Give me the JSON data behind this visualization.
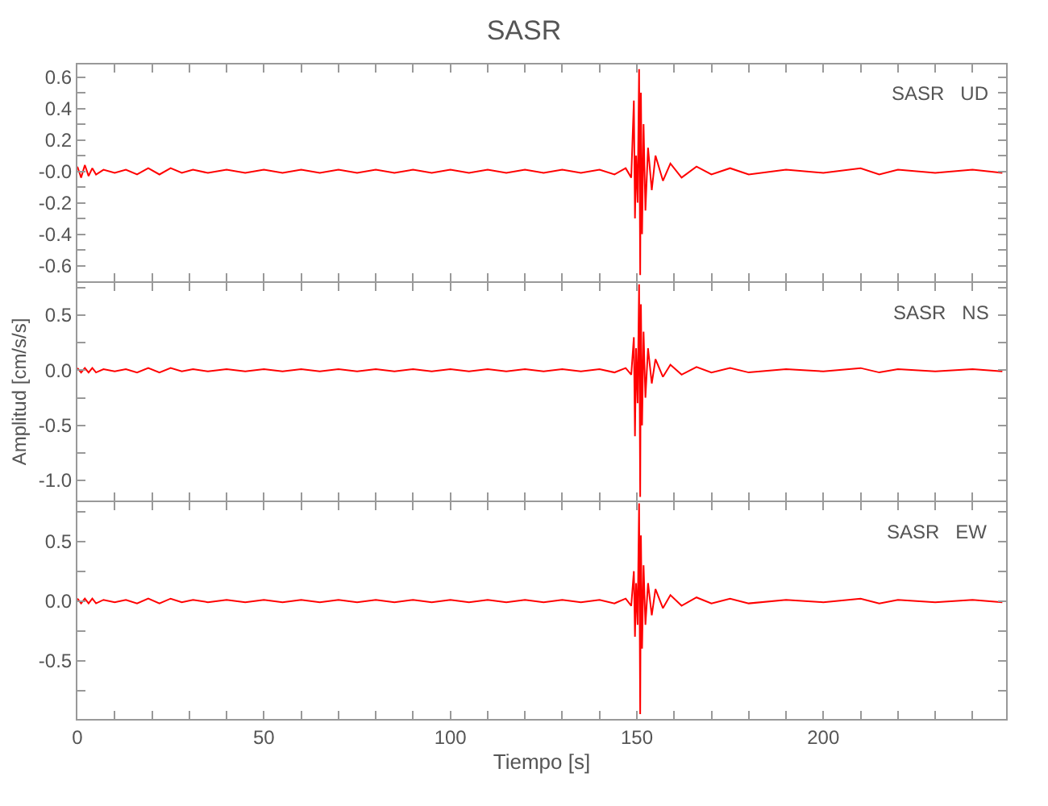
{
  "chart_data": [
    {
      "type": "line",
      "title": "SASR",
      "annotations": [
        "SASR   UD"
      ],
      "tick_labels": "y",
      "xlim": [
        0,
        249
      ],
      "ylim": [
        -0.7,
        0.68
      ],
      "line_style": "solid",
      "marker": "none",
      "xticks": [
        0,
        {
          "value": 10,
          "label": null
        },
        {
          "value": 20,
          "label": null
        },
        {
          "value": 30,
          "label": null
        },
        {
          "value": 40,
          "label": null
        },
        50,
        {
          "value": 60,
          "label": null
        },
        {
          "value": 70,
          "label": null
        },
        {
          "value": 80,
          "label": null
        },
        {
          "value": 90,
          "label": null
        },
        100,
        {
          "value": 110,
          "label": null
        },
        {
          "value": 120,
          "label": null
        },
        {
          "value": 130,
          "label": null
        },
        {
          "value": 140,
          "label": null
        },
        150,
        {
          "value": 160,
          "label": null
        },
        {
          "value": 170,
          "label": null
        },
        {
          "value": 180,
          "label": null
        },
        {
          "value": 190,
          "label": null
        },
        200,
        {
          "value": 210,
          "label": null
        },
        {
          "value": 220,
          "label": null
        },
        {
          "value": 230,
          "label": null
        },
        {
          "value": 240,
          "label": null
        }
      ],
      "yticks": [
        {
          "value": -0.7,
          "label": null
        },
        {
          "value": -0.6,
          "label": "-0.6"
        },
        {
          "value": -0.5,
          "label": null
        },
        {
          "value": -0.4,
          "label": "-0.4"
        },
        {
          "value": -0.3,
          "label": null
        },
        {
          "value": -0.2,
          "label": "-0.2"
        },
        {
          "value": -0.1,
          "label": null
        },
        {
          "value": 0,
          "label": "-0.0"
        },
        {
          "value": 0.1,
          "label": null
        },
        {
          "value": 0.2,
          "label": "0.2"
        },
        {
          "value": 0.3,
          "label": null
        },
        {
          "value": 0.4,
          "label": "0.4"
        },
        {
          "value": 0.5,
          "label": null
        },
        {
          "value": 0.6,
          "label": "0.6"
        }
      ],
      "x": [
        0,
        1,
        2,
        3,
        4,
        5,
        7,
        10,
        13,
        16,
        19,
        22,
        25,
        28,
        31,
        35,
        40,
        45,
        50,
        55,
        60,
        65,
        70,
        75,
        80,
        85,
        90,
        95,
        100,
        105,
        110,
        115,
        120,
        125,
        130,
        135,
        140,
        144,
        147,
        148.5,
        149.2,
        149.5,
        149.8,
        150.2,
        150.6,
        150.9,
        151.1,
        151.4,
        151.8,
        152.3,
        153,
        154,
        155,
        157,
        159,
        162,
        166,
        170,
        175,
        180,
        190,
        200,
        210,
        215,
        220,
        230,
        240,
        248
      ],
      "series": [
        {
          "color": "#ff0000",
          "values": [
            0.03,
            -0.04,
            0.04,
            -0.03,
            0.02,
            -0.02,
            0.01,
            -0.01,
            0.01,
            -0.02,
            0.02,
            -0.02,
            0.02,
            -0.01,
            0.01,
            -0.01,
            0.01,
            -0.01,
            0.01,
            -0.01,
            0.01,
            -0.01,
            0.01,
            -0.01,
            0.01,
            -0.01,
            0.01,
            -0.01,
            0.01,
            -0.01,
            0.01,
            -0.01,
            0.01,
            -0.01,
            0.01,
            -0.01,
            0.01,
            -0.02,
            0.02,
            -0.04,
            0.45,
            -0.3,
            0.1,
            -0.2,
            0.65,
            -0.66,
            0.5,
            -0.4,
            0.3,
            -0.25,
            0.15,
            -0.12,
            0.1,
            -0.06,
            0.05,
            -0.04,
            0.03,
            -0.02,
            0.02,
            -0.02,
            0.01,
            -0.01,
            0.02,
            -0.02,
            0.01,
            -0.01,
            0.01,
            -0.01
          ]
        }
      ]
    },
    {
      "type": "line",
      "ylabel": "Amplitud [cm/s/s]",
      "annotations": [
        "SASR   NS"
      ],
      "tick_labels": "y",
      "xlim": [
        0,
        249
      ],
      "ylim": [
        -1.18,
        0.79
      ],
      "line_style": "solid",
      "marker": "none",
      "xticks": [
        0,
        {
          "value": 10,
          "label": null
        },
        {
          "value": 20,
          "label": null
        },
        {
          "value": 30,
          "label": null
        },
        {
          "value": 40,
          "label": null
        },
        50,
        {
          "value": 60,
          "label": null
        },
        {
          "value": 70,
          "label": null
        },
        {
          "value": 80,
          "label": null
        },
        {
          "value": 90,
          "label": null
        },
        100,
        {
          "value": 110,
          "label": null
        },
        {
          "value": 120,
          "label": null
        },
        {
          "value": 130,
          "label": null
        },
        {
          "value": 140,
          "label": null
        },
        150,
        {
          "value": 160,
          "label": null
        },
        {
          "value": 170,
          "label": null
        },
        {
          "value": 180,
          "label": null
        },
        {
          "value": 190,
          "label": null
        },
        200,
        {
          "value": 210,
          "label": null
        },
        {
          "value": 220,
          "label": null
        },
        {
          "value": 230,
          "label": null
        },
        {
          "value": 240,
          "label": null
        }
      ],
      "yticks": [
        {
          "value": -1.0,
          "label": "-1.0"
        },
        {
          "value": -0.75,
          "label": null
        },
        {
          "value": -0.5,
          "label": "-0.5"
        },
        {
          "value": -0.25,
          "label": null
        },
        {
          "value": 0,
          "label": "0.0"
        },
        {
          "value": 0.25,
          "label": null
        },
        {
          "value": 0.5,
          "label": "0.5"
        },
        {
          "value": 0.75,
          "label": null
        }
      ],
      "x": [
        0,
        1,
        2,
        3,
        4,
        5,
        7,
        10,
        13,
        16,
        19,
        22,
        25,
        28,
        31,
        35,
        40,
        45,
        50,
        55,
        60,
        65,
        70,
        75,
        80,
        85,
        90,
        95,
        100,
        105,
        110,
        115,
        120,
        125,
        130,
        135,
        140,
        144,
        147,
        148.5,
        149.2,
        149.5,
        149.8,
        150.2,
        150.6,
        150.9,
        151.1,
        151.4,
        151.8,
        152.3,
        153,
        154,
        155,
        157,
        159,
        162,
        166,
        170,
        175,
        180,
        190,
        200,
        210,
        215,
        220,
        230,
        240,
        248
      ],
      "series": [
        {
          "color": "#ff0000",
          "values": [
            0.02,
            -0.02,
            0.02,
            -0.02,
            0.02,
            -0.02,
            0.01,
            -0.01,
            0.01,
            -0.02,
            0.02,
            -0.02,
            0.02,
            -0.01,
            0.01,
            -0.01,
            0.01,
            -0.01,
            0.01,
            -0.01,
            0.01,
            -0.01,
            0.01,
            -0.01,
            0.01,
            -0.01,
            0.01,
            -0.01,
            0.01,
            -0.01,
            0.01,
            -0.01,
            0.01,
            -0.01,
            0.01,
            -0.01,
            0.01,
            -0.02,
            0.02,
            -0.04,
            0.3,
            -0.6,
            0.2,
            -0.3,
            0.78,
            -1.15,
            0.6,
            -0.5,
            0.35,
            -0.25,
            0.2,
            -0.12,
            0.1,
            -0.06,
            0.05,
            -0.04,
            0.03,
            -0.02,
            0.02,
            -0.02,
            0.01,
            -0.01,
            0.02,
            -0.02,
            0.01,
            -0.01,
            0.01,
            -0.01
          ]
        }
      ]
    },
    {
      "type": "line",
      "xlabel": "Tiempo [s]",
      "annotations": [
        "SASR   EW"
      ],
      "xlim": [
        0,
        249
      ],
      "ylim": [
        -0.99,
        0.83
      ],
      "line_style": "solid",
      "marker": "none",
      "xticks": [
        0,
        {
          "value": 10,
          "label": null
        },
        {
          "value": 20,
          "label": null
        },
        {
          "value": 30,
          "label": null
        },
        {
          "value": 40,
          "label": null
        },
        50,
        {
          "value": 60,
          "label": null
        },
        {
          "value": 70,
          "label": null
        },
        {
          "value": 80,
          "label": null
        },
        {
          "value": 90,
          "label": null
        },
        100,
        {
          "value": 110,
          "label": null
        },
        {
          "value": 120,
          "label": null
        },
        {
          "value": 130,
          "label": null
        },
        {
          "value": 140,
          "label": null
        },
        150,
        {
          "value": 160,
          "label": null
        },
        {
          "value": 170,
          "label": null
        },
        {
          "value": 180,
          "label": null
        },
        {
          "value": 190,
          "label": null
        },
        200,
        {
          "value": 210,
          "label": null
        },
        {
          "value": 220,
          "label": null
        },
        {
          "value": 230,
          "label": null
        },
        {
          "value": 240,
          "label": null
        }
      ],
      "yticks": [
        {
          "value": -0.75,
          "label": null
        },
        {
          "value": -0.5,
          "label": "-0.5"
        },
        {
          "value": -0.25,
          "label": null
        },
        {
          "value": 0,
          "label": "0.0"
        },
        {
          "value": 0.25,
          "label": null
        },
        {
          "value": 0.5,
          "label": "0.5"
        },
        {
          "value": 0.75,
          "label": null
        }
      ],
      "x": [
        0,
        1,
        2,
        3,
        4,
        5,
        7,
        10,
        13,
        16,
        19,
        22,
        25,
        28,
        31,
        35,
        40,
        45,
        50,
        55,
        60,
        65,
        70,
        75,
        80,
        85,
        90,
        95,
        100,
        105,
        110,
        115,
        120,
        125,
        130,
        135,
        140,
        144,
        147,
        148.5,
        149.2,
        149.5,
        149.8,
        150.2,
        150.6,
        150.9,
        151.1,
        151.4,
        151.8,
        152.3,
        153,
        154,
        155,
        157,
        159,
        162,
        166,
        170,
        175,
        180,
        190,
        200,
        210,
        215,
        220,
        230,
        240,
        248
      ],
      "series": [
        {
          "color": "#ff0000",
          "values": [
            0.02,
            -0.02,
            0.02,
            -0.02,
            0.02,
            -0.02,
            0.01,
            -0.01,
            0.01,
            -0.02,
            0.02,
            -0.02,
            0.02,
            -0.01,
            0.01,
            -0.01,
            0.01,
            -0.01,
            0.01,
            -0.01,
            0.01,
            -0.01,
            0.01,
            -0.01,
            0.01,
            -0.01,
            0.01,
            -0.01,
            0.01,
            -0.01,
            0.01,
            -0.01,
            0.01,
            -0.01,
            0.01,
            -0.01,
            0.01,
            -0.02,
            0.02,
            -0.04,
            0.25,
            -0.3,
            0.15,
            -0.2,
            0.82,
            -0.95,
            0.55,
            -0.4,
            0.3,
            -0.2,
            0.15,
            -0.12,
            0.1,
            -0.06,
            0.05,
            -0.04,
            0.03,
            -0.02,
            0.02,
            -0.02,
            0.01,
            -0.01,
            0.02,
            -0.02,
            0.01,
            -0.01,
            0.01,
            -0.01
          ]
        }
      ]
    }
  ]
}
